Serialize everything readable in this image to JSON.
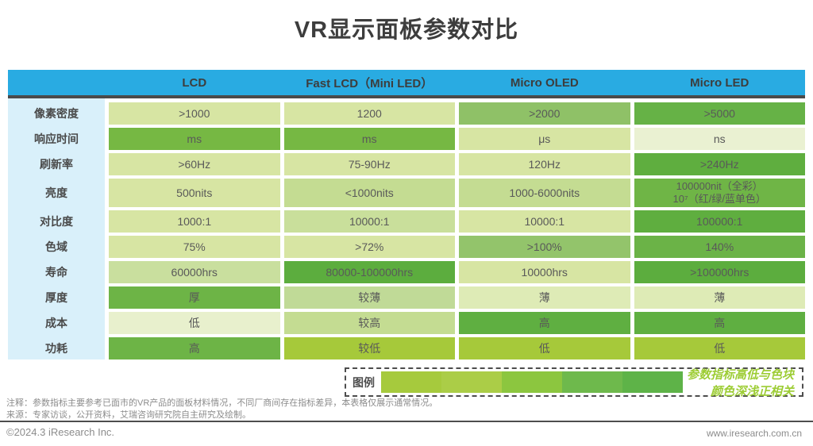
{
  "title": "VR显示面板参数对比",
  "colors": {
    "header_blue": "#29abe2",
    "label_column_bg": "#d9f0fa",
    "header_rule": "#4a4a4a",
    "cell_text": "#595959",
    "legend_text_green": "#9dcd35"
  },
  "chart_data": {
    "type": "table",
    "title": "VR显示面板参数对比",
    "columns": [
      "LCD",
      "Fast LCD（Mini LED）",
      "Micro OLED",
      "Micro LED"
    ],
    "column_keys": [
      "lcd",
      "fast-lcd",
      "micro-oled",
      "micro-led"
    ],
    "rows": [
      {
        "key": "pixel-density",
        "label": "像素密度",
        "cells": [
          {
            "text": ">1000",
            "bg": "#d7e5a3"
          },
          {
            "text": "1200",
            "bg": "#d7e5a3"
          },
          {
            "text": ">2000",
            "bg": "#8fc167"
          },
          {
            "text": ">5000",
            "bg": "#66b246"
          }
        ]
      },
      {
        "key": "response-time",
        "label": "响应时间",
        "cells": [
          {
            "text": "ms",
            "bg": "#76b843"
          },
          {
            "text": "ms",
            "bg": "#76b843"
          },
          {
            "text": "μs",
            "bg": "#d7e5a3"
          },
          {
            "text": "ns",
            "bg": "#eaf1d2"
          }
        ]
      },
      {
        "key": "refresh-rate",
        "label": "刷新率",
        "cells": [
          {
            "text": ">60Hz",
            "bg": "#d7e5a3"
          },
          {
            "text": "75-90Hz",
            "bg": "#d7e5a3"
          },
          {
            "text": "120Hz",
            "bg": "#d7e5a3"
          },
          {
            "text": ">240Hz",
            "bg": "#5fae3f"
          }
        ]
      },
      {
        "key": "brightness",
        "label": "亮度",
        "cells": [
          {
            "text": "500nits",
            "bg": "#d7e5a3"
          },
          {
            "text": "<1000nits",
            "bg": "#c4dc92"
          },
          {
            "text": "1000-6000nits",
            "bg": "#c4dc92"
          },
          {
            "text": "100000nit（全彩）\n10⁷（红/绿/蓝单色）",
            "bg": "#6fb546",
            "small": true
          }
        ]
      },
      {
        "key": "contrast",
        "label": "对比度",
        "cells": [
          {
            "text": "1000:1",
            "bg": "#d7e5a3"
          },
          {
            "text": "10000:1",
            "bg": "#c9df9b"
          },
          {
            "text": "10000:1",
            "bg": "#d7e5a3"
          },
          {
            "text": "100000:1",
            "bg": "#5fae3f"
          }
        ]
      },
      {
        "key": "color-gamut",
        "label": "色域",
        "cells": [
          {
            "text": "75%",
            "bg": "#d7e5a3"
          },
          {
            "text": ">72%",
            "bg": "#d7e5a3"
          },
          {
            "text": ">100%",
            "bg": "#93c46b"
          },
          {
            "text": "140%",
            "bg": "#6bb347"
          }
        ]
      },
      {
        "key": "lifespan",
        "label": "寿命",
        "cells": [
          {
            "text": "60000hrs",
            "bg": "#c9df9e"
          },
          {
            "text": "80000-100000hrs",
            "bg": "#5cad3e"
          },
          {
            "text": "10000hrs",
            "bg": "#d7e5a3"
          },
          {
            "text": ">100000hrs",
            "bg": "#5cad3e"
          }
        ]
      },
      {
        "key": "thickness",
        "label": "厚度",
        "cells": [
          {
            "text": "厚",
            "bg": "#6db446"
          },
          {
            "text": "较薄",
            "bg": "#c0da97"
          },
          {
            "text": "薄",
            "bg": "#deebb6"
          },
          {
            "text": "薄",
            "bg": "#deebb6"
          }
        ]
      },
      {
        "key": "cost",
        "label": "成本",
        "cells": [
          {
            "text": "低",
            "bg": "#e8f0cd"
          },
          {
            "text": "较高",
            "bg": "#c4dc92"
          },
          {
            "text": "高",
            "bg": "#5faf41"
          },
          {
            "text": "高",
            "bg": "#5faf41"
          }
        ]
      },
      {
        "key": "power-consumption",
        "label": "功耗",
        "cells": [
          {
            "text": "高",
            "bg": "#6db446"
          },
          {
            "text": "较低",
            "bg": "#a6c93a"
          },
          {
            "text": "低",
            "bg": "#a6c93a"
          },
          {
            "text": "低",
            "bg": "#a6c93a"
          }
        ]
      }
    ]
  },
  "legend": {
    "label": "图例",
    "swatches": [
      "#a6ca3d",
      "#abcd47",
      "#8cc63f",
      "#6eb94c",
      "#5eb348"
    ],
    "text": "参数指标高低与色块颜色深浅正相关"
  },
  "footer": {
    "note": "注释：参数指标主要参考已面市的VR产品的面板材料情况，不同厂商间存在指标差异，本表格仅展示通常情况。",
    "source": "来源：专家访谈，公开资料，艾瑞咨询研究院自主研究及绘制。",
    "copyright": "©2024.3 iResearch Inc.",
    "website": "www.iresearch.com.cn"
  }
}
